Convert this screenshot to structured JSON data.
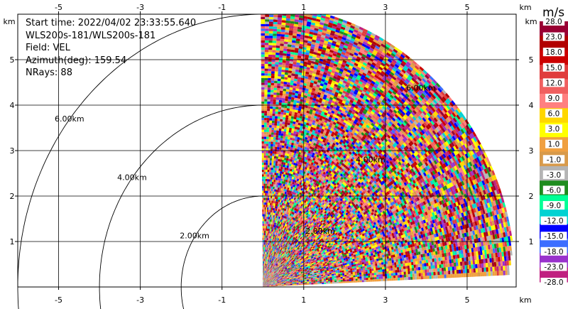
{
  "info": {
    "start_time": "Start time: 2022/04/02 23:33:55.640",
    "instrument": "WLS200s-181/WLS200s-181",
    "field": "Field: VEL",
    "azimuth": "Azimuth(deg): 159.54",
    "nrays": "NRays: 88"
  },
  "chart_data": {
    "type": "heatmap",
    "subtype": "radar-ppi-sector",
    "field": "VEL",
    "units": "m/s",
    "x_axis": {
      "unit_label": "km",
      "range": [
        -6.0,
        6.2
      ],
      "ticks": [
        -5,
        -3,
        -1,
        1,
        3,
        5
      ],
      "tick_labels": [
        "-5",
        "-3",
        "-1",
        "1",
        "3",
        "5"
      ]
    },
    "y_axis": {
      "unit_label": "km",
      "range": [
        0.0,
        6.0
      ],
      "ticks": [
        1,
        2,
        3,
        4,
        5
      ],
      "tick_labels": [
        "1",
        "2",
        "3",
        "4",
        "5"
      ]
    },
    "grid": true,
    "range_rings": [
      {
        "radius_km": 2.0,
        "label": "2.00km"
      },
      {
        "radius_km": 4.0,
        "label": "4.00km"
      },
      {
        "radius_km": 6.0,
        "label": "6.00km"
      }
    ],
    "sector": {
      "radar_x_km": 0.0,
      "radar_y_km": 0.0,
      "azimuth_start_deg": 0,
      "azimuth_end_deg": 87,
      "max_range_km": 6.2,
      "n_rays": 88
    },
    "colorbar": {
      "title": "m/s",
      "tick_labels": [
        "28.0",
        "23.0",
        "18.0",
        "15.0",
        "12.0",
        "9.0",
        "6.0",
        "3.0",
        "1.0",
        "-1.0",
        "-3.0",
        "-6.0",
        "-9.0",
        "-12.0",
        "-15.0",
        "-18.0",
        "-23.0",
        "-28.0"
      ],
      "colors": [
        "#990033",
        "#b20000",
        "#cc0000",
        "#e03c3c",
        "#f06060",
        "#ff8080",
        "#ffd700",
        "#ffff00",
        "#f0a040",
        "#d89a4a",
        "#b4b4b4",
        "#1e8c1e",
        "#00ff96",
        "#00d2d2",
        "#0000ff",
        "#3c6eff",
        "#9932cc",
        "#c02080"
      ]
    }
  }
}
